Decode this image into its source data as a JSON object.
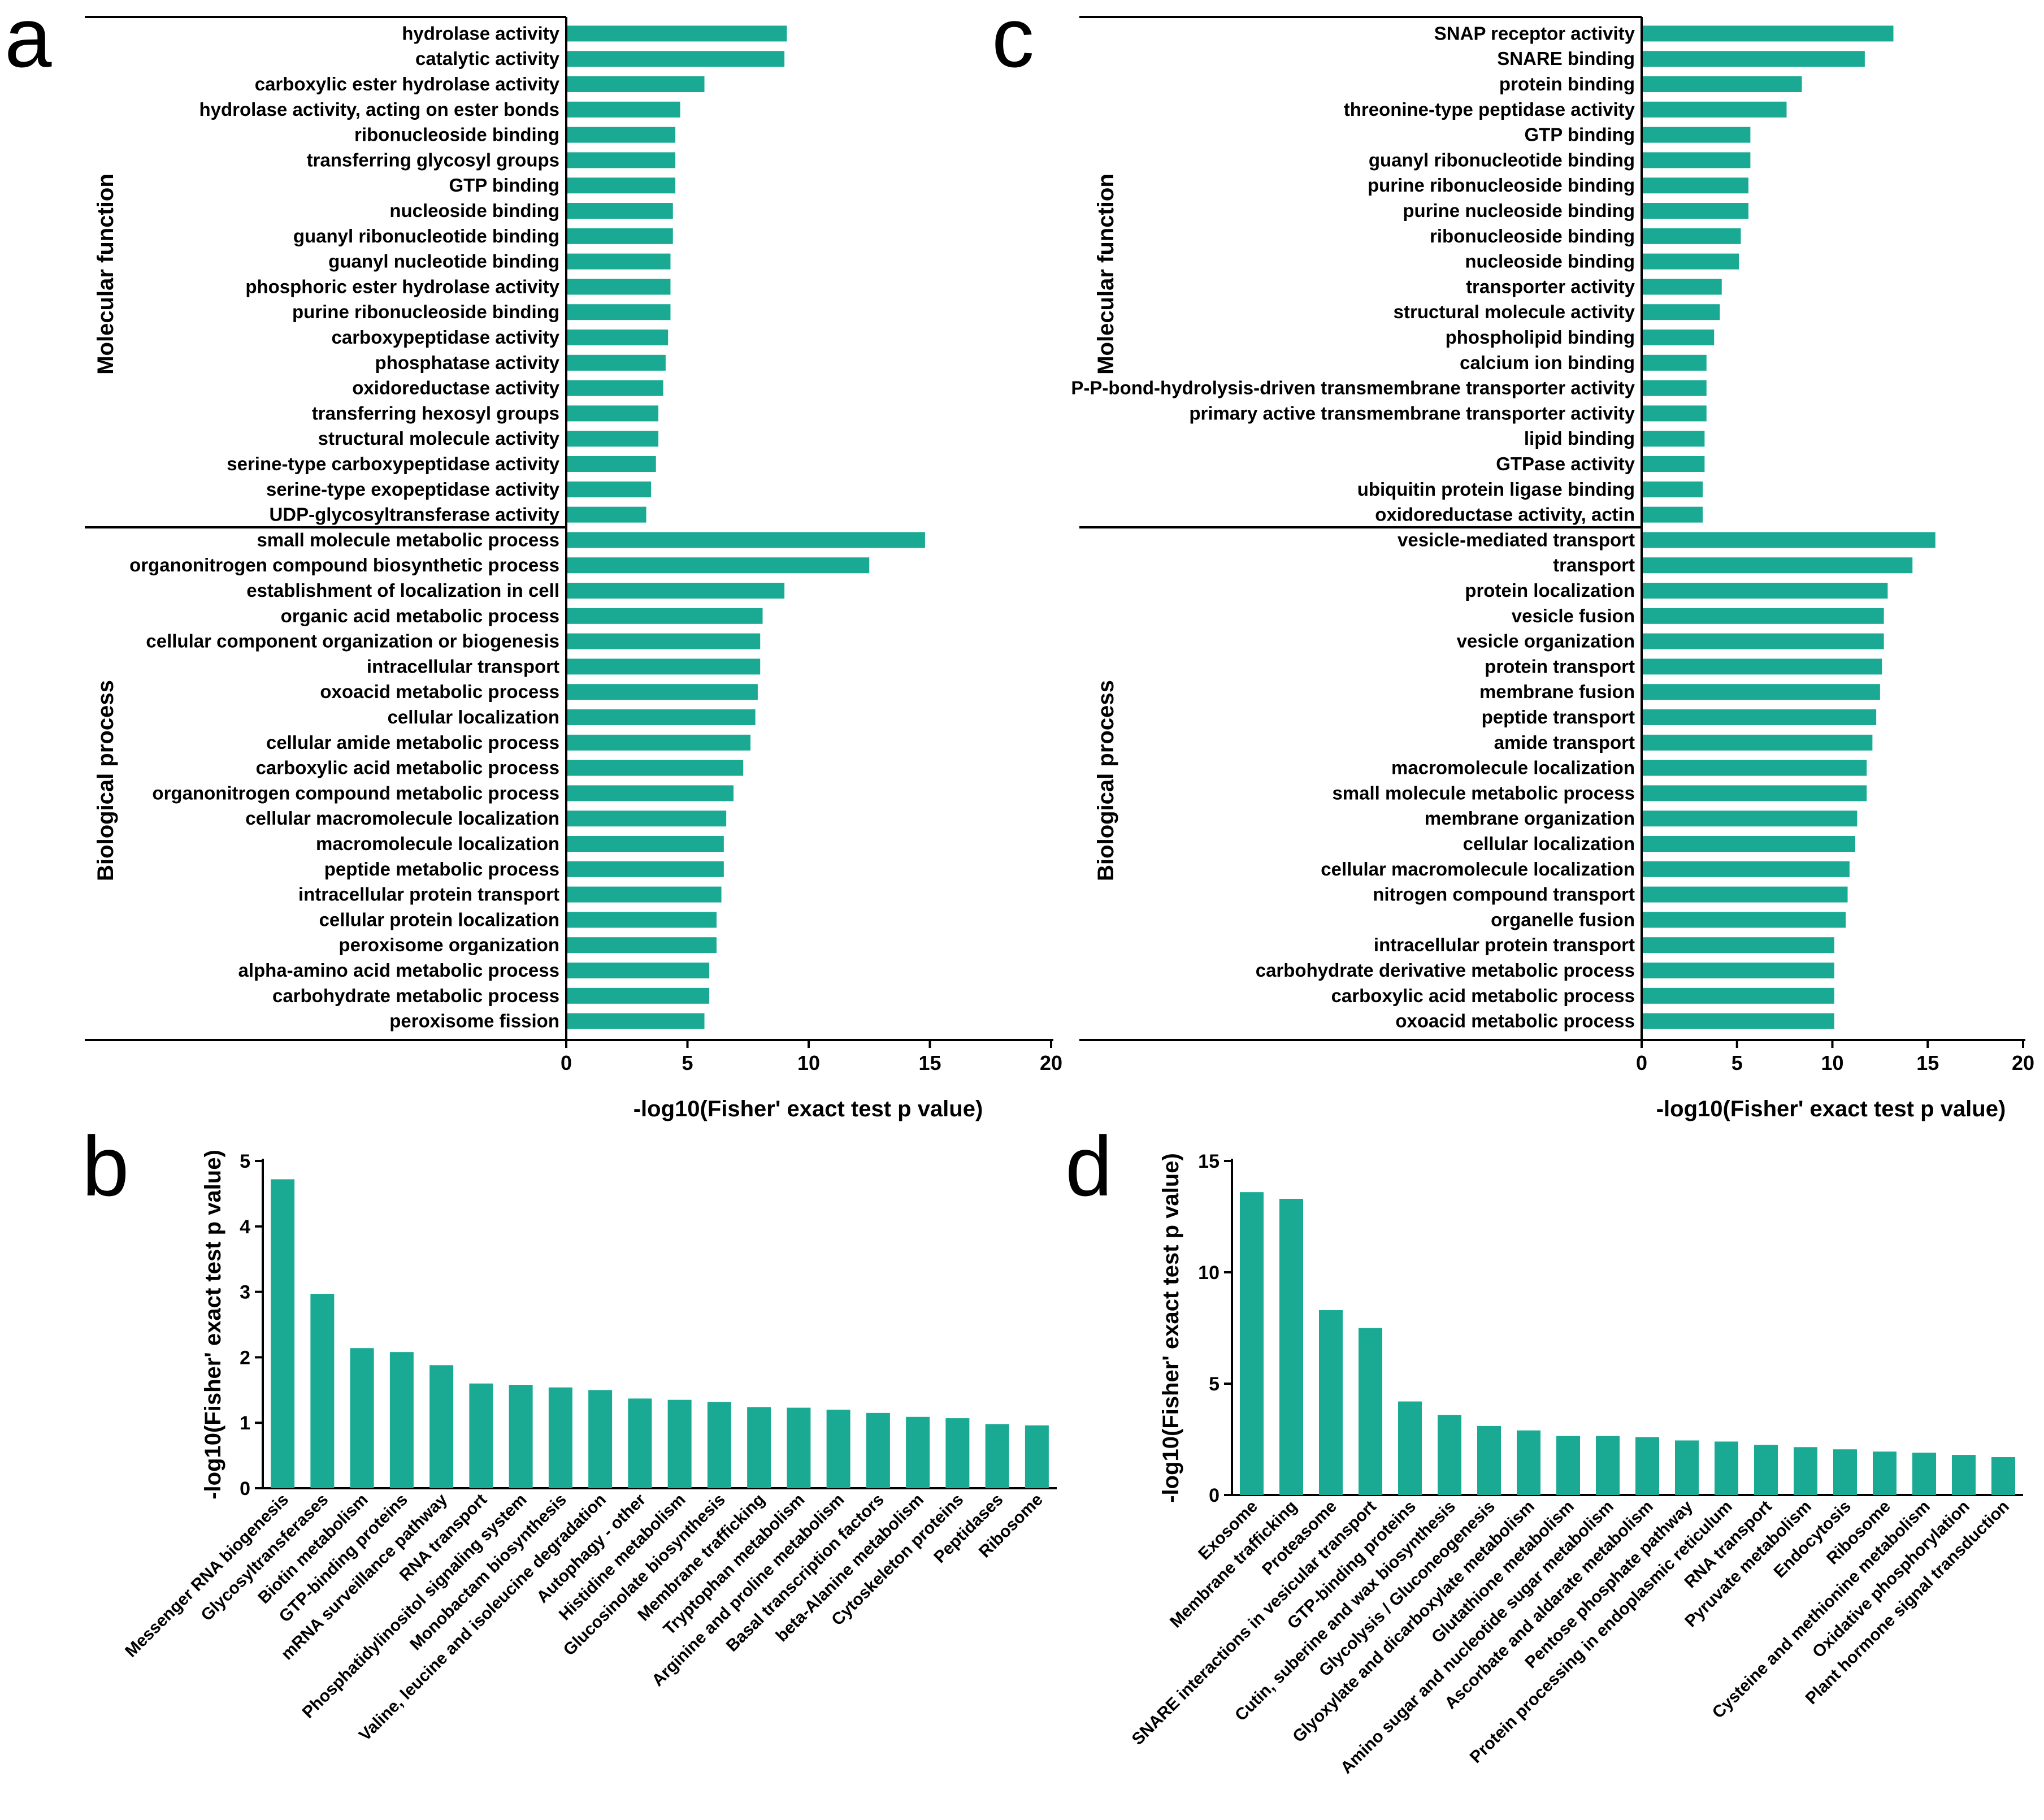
{
  "colors": {
    "bar": "#1aaa94",
    "axis": "#000000",
    "text": "#000000"
  },
  "chart_data": [
    {
      "id": "a",
      "panel_label": "a",
      "type": "bar",
      "orientation": "horizontal",
      "xlabel": "-log10(Fisher' exact test p value)",
      "xlim": [
        0,
        20
      ],
      "xticks": [
        0,
        5,
        10,
        15,
        20
      ],
      "groups": [
        {
          "name": "Molecular function",
          "categories": [
            "hydrolase activity",
            "catalytic activity",
            "carboxylic ester hydrolase activity",
            "hydrolase activity, acting on ester bonds",
            "ribonucleoside binding",
            "transferring glycosyl groups",
            "GTP binding",
            "nucleoside binding",
            "guanyl ribonucleotide binding",
            "guanyl nucleotide binding",
            "phosphoric ester hydrolase activity",
            "purine ribonucleoside binding",
            "carboxypeptidase activity",
            "phosphatase activity",
            "oxidoreductase activity",
            "transferring hexosyl groups",
            "structural molecule activity",
            "serine-type carboxypeptidase activity",
            "serine-type exopeptidase activity",
            "UDP-glycosyltransferase activity"
          ],
          "values": [
            9.1,
            9.0,
            5.7,
            4.7,
            4.5,
            4.5,
            4.5,
            4.4,
            4.4,
            4.3,
            4.3,
            4.3,
            4.2,
            4.1,
            4.0,
            3.8,
            3.8,
            3.7,
            3.5,
            3.3
          ]
        },
        {
          "name": "Biological process",
          "categories": [
            "small molecule metabolic process",
            "organonitrogen compound biosynthetic process",
            "establishment of localization in cell",
            "organic acid metabolic process",
            "cellular component organization or biogenesis",
            "intracellular transport",
            "oxoacid metabolic process",
            "cellular localization",
            "cellular amide metabolic process",
            "carboxylic acid metabolic process",
            "organonitrogen compound metabolic process",
            "cellular macromolecule localization",
            "macromolecule localization",
            "peptide metabolic process",
            "intracellular protein transport",
            "cellular protein localization",
            "peroxisome organization",
            "alpha-amino acid metabolic process",
            "carbohydrate metabolic process",
            "peroxisome fission"
          ],
          "values": [
            14.8,
            12.5,
            9.0,
            8.1,
            8.0,
            8.0,
            7.9,
            7.8,
            7.6,
            7.3,
            6.9,
            6.6,
            6.5,
            6.5,
            6.4,
            6.2,
            6.2,
            5.9,
            5.9,
            5.7
          ]
        }
      ]
    },
    {
      "id": "c",
      "panel_label": "c",
      "type": "bar",
      "orientation": "horizontal",
      "xlabel": "-log10(Fisher' exact test p value)",
      "xlim": [
        0,
        20
      ],
      "xticks": [
        0,
        5,
        10,
        15,
        20
      ],
      "groups": [
        {
          "name": "Molecular function",
          "categories": [
            "SNAP receptor activity",
            "SNARE binding",
            "protein binding",
            "threonine-type peptidase activity",
            "GTP binding",
            "guanyl ribonucleotide binding",
            "purine ribonucleoside binding",
            "purine nucleoside binding",
            "ribonucleoside binding",
            "nucleoside binding",
            "transporter activity",
            "structural molecule activity",
            "phospholipid binding",
            "calcium ion binding",
            "P-P-bond-hydrolysis-driven transmembrane transporter activity",
            "primary active transmembrane transporter activity",
            "lipid binding",
            "GTPase activity",
            "ubiquitin protein ligase binding",
            "oxidoreductase activity, actin"
          ],
          "values": [
            13.2,
            11.7,
            8.4,
            7.6,
            5.7,
            5.7,
            5.6,
            5.6,
            5.2,
            5.1,
            4.2,
            4.1,
            3.8,
            3.4,
            3.4,
            3.4,
            3.3,
            3.3,
            3.2,
            3.2
          ]
        },
        {
          "name": "Biological process",
          "categories": [
            "vesicle-mediated transport",
            "transport",
            "protein localization",
            "vesicle fusion",
            "vesicle organization",
            "protein transport",
            "membrane fusion",
            "peptide transport",
            "amide transport",
            "macromolecule localization",
            "small molecule metabolic process",
            "membrane organization",
            "cellular localization",
            "cellular macromolecule localization",
            "nitrogen compound transport",
            "organelle fusion",
            "intracellular protein transport",
            "carbohydrate derivative metabolic process",
            "carboxylic acid metabolic process",
            "oxoacid metabolic process"
          ],
          "values": [
            15.4,
            14.2,
            12.9,
            12.7,
            12.7,
            12.6,
            12.5,
            12.3,
            12.1,
            11.8,
            11.8,
            11.3,
            11.2,
            10.9,
            10.8,
            10.7,
            10.1,
            10.1,
            10.1,
            10.1
          ]
        }
      ]
    },
    {
      "id": "b",
      "panel_label": "b",
      "type": "bar",
      "orientation": "vertical",
      "ylabel": "-log10(Fisher' exact test p value)",
      "ylim": [
        0,
        5
      ],
      "yticks": [
        0,
        1,
        2,
        3,
        4,
        5
      ],
      "categories": [
        "Messenger RNA biogenesis",
        "Glycosyltransferases",
        "Biotin metabolism",
        "GTP-binding proteins",
        "mRNA surveillance pathway",
        "RNA transport",
        "Phosphatidylinositol signaling system",
        "Monobactam biosynthesis",
        "Valine, leucine and isoleucine degradation",
        "Autophagy - other",
        "Histidine metabolism",
        "Glucosinolate biosynthesis",
        "Membrane trafficking",
        "Tryptophan metabolism",
        "Arginine and proline metabolism",
        "Basal transcription factors",
        "beta-Alanine metabolism",
        "Cytoskeleton proteins",
        "Peptidases",
        "Ribosome"
      ],
      "values": [
        4.72,
        2.97,
        2.14,
        2.08,
        1.88,
        1.6,
        1.58,
        1.54,
        1.5,
        1.37,
        1.35,
        1.32,
        1.24,
        1.23,
        1.2,
        1.15,
        1.09,
        1.07,
        0.98,
        0.96
      ]
    },
    {
      "id": "d",
      "panel_label": "d",
      "type": "bar",
      "orientation": "vertical",
      "ylabel": "-log10(Fisher' exact test p value)",
      "ylim": [
        0,
        15
      ],
      "yticks": [
        0,
        5,
        10,
        15
      ],
      "categories": [
        "Exosome",
        "Membrane trafficking",
        "Proteasome",
        "SNARE interactions in vesicular transport",
        "GTP-binding proteins",
        "Cutin, suberine and wax biosynthesis",
        "Glycolysis / Gluconeogenesis",
        "Glyoxylate and dicarboxylate metabolism",
        "Glutathione metabolism",
        "Amino sugar and nucleotide sugar metabolism",
        "Ascorbate and aldarate metabolism",
        "Pentose phosphate pathway",
        "Protein processing in endoplasmic reticulum",
        "RNA transport",
        "Pyruvate metabolism",
        "Endocytosis",
        "Ribosome",
        "Cysteine and methionine metabolism",
        "Oxidative phosphorylation",
        "Plant hormone signal transduction"
      ],
      "values": [
        13.6,
        13.3,
        8.3,
        7.5,
        4.2,
        3.6,
        3.1,
        2.9,
        2.65,
        2.65,
        2.6,
        2.45,
        2.4,
        2.25,
        2.15,
        2.05,
        1.95,
        1.9,
        1.8,
        1.7
      ]
    }
  ]
}
